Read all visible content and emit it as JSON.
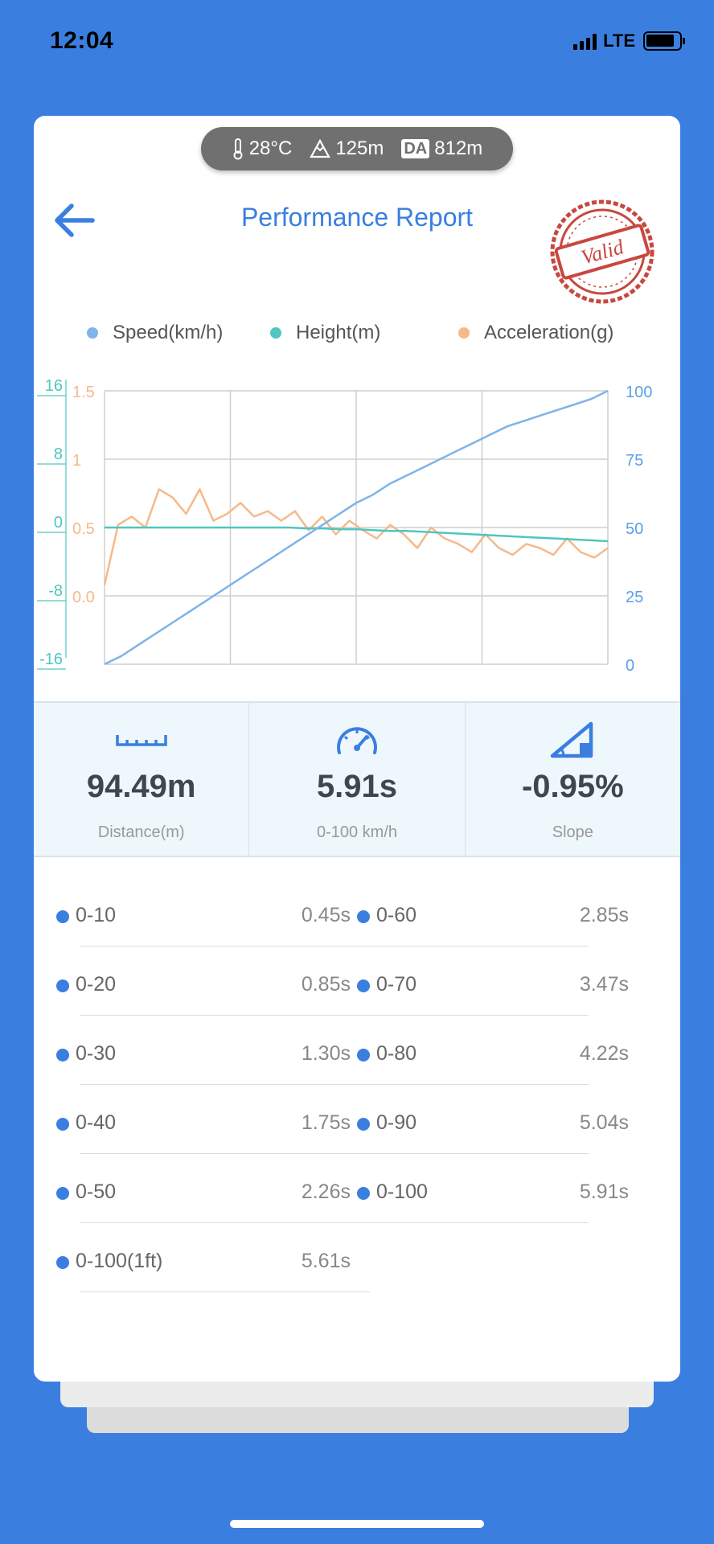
{
  "status_bar": {
    "time": "12:04",
    "network": "LTE"
  },
  "env": {
    "temperature": "28°C",
    "altitude": "125m",
    "da_label": "DA",
    "density_altitude": "812m"
  },
  "header": {
    "title": "Performance Report",
    "stamp_text": "Valid"
  },
  "legend": [
    {
      "label": "Speed(km/h)",
      "color": "#7fb3ea"
    },
    {
      "label": "Height(m)",
      "color": "#4fc6c0"
    },
    {
      "label": "Acceleration(g)",
      "color": "#f6b98a"
    }
  ],
  "chart_data": {
    "type": "line",
    "axes": {
      "height_left": {
        "ticks": [
          "16",
          "8",
          "0",
          "-8",
          "-16"
        ],
        "range": [
          -16,
          16
        ],
        "color": "#4fc6c0"
      },
      "accel_left": {
        "ticks": [
          "1.5",
          "1",
          "0.5",
          "0.0"
        ],
        "color": "#f6b98a"
      },
      "speed_right": {
        "ticks": [
          "100",
          "75",
          "50",
          "25",
          "0"
        ],
        "range": [
          0,
          100
        ],
        "color": "#5aa0e6"
      }
    },
    "grid": true,
    "series": [
      {
        "name": "Speed(km/h)",
        "color": "#7fb3ea",
        "values": [
          0,
          3,
          7,
          11,
          15,
          19,
          23,
          27,
          31,
          35,
          39,
          43,
          47,
          51,
          55,
          59,
          62,
          66,
          69,
          72,
          75,
          78,
          81,
          84,
          87,
          89,
          91,
          93,
          95,
          97,
          100
        ]
      },
      {
        "name": "Height(m)",
        "color": "#4fc6c0",
        "values": [
          0,
          0,
          0,
          0,
          0,
          0,
          0,
          0,
          0,
          0,
          0,
          0,
          -0.1,
          -0.1,
          -0.2,
          -0.2,
          -0.3,
          -0.4,
          -0.4,
          -0.5,
          -0.6,
          -0.7,
          -0.8,
          -0.9,
          -1,
          -1.1,
          -1.2,
          -1.3,
          -1.4,
          -1.5,
          -1.6
        ]
      },
      {
        "name": "Acceleration(g)",
        "color": "#f6b98a",
        "values": [
          0.08,
          0.52,
          0.58,
          0.5,
          0.78,
          0.72,
          0.6,
          0.78,
          0.55,
          0.6,
          0.68,
          0.58,
          0.62,
          0.55,
          0.62,
          0.48,
          0.58,
          0.45,
          0.55,
          0.48,
          0.42,
          0.52,
          0.45,
          0.35,
          0.5,
          0.42,
          0.38,
          0.32,
          0.45,
          0.35,
          0.3,
          0.38,
          0.35,
          0.3,
          0.42,
          0.32,
          0.28,
          0.35
        ]
      }
    ]
  },
  "stats": [
    {
      "value": "94.49m",
      "label": "Distance(m)",
      "icon": "ruler-icon"
    },
    {
      "value": "5.91s",
      "label": "0-100 km/h",
      "icon": "speedometer-icon"
    },
    {
      "value": "-0.95%",
      "label": "Slope",
      "icon": "slope-icon"
    }
  ],
  "splits_left": [
    {
      "label": "0-10",
      "value": "0.45s"
    },
    {
      "label": "0-20",
      "value": "0.85s"
    },
    {
      "label": "0-30",
      "value": "1.30s"
    },
    {
      "label": "0-40",
      "value": "1.75s"
    },
    {
      "label": "0-50",
      "value": "2.26s"
    },
    {
      "label": "0-100(1ft)",
      "value": "5.61s"
    }
  ],
  "splits_right": [
    {
      "label": "0-60",
      "value": "2.85s"
    },
    {
      "label": "0-70",
      "value": "3.47s"
    },
    {
      "label": "0-80",
      "value": "4.22s"
    },
    {
      "label": "0-90",
      "value": "5.04s"
    },
    {
      "label": "0-100",
      "value": "5.91s"
    }
  ]
}
